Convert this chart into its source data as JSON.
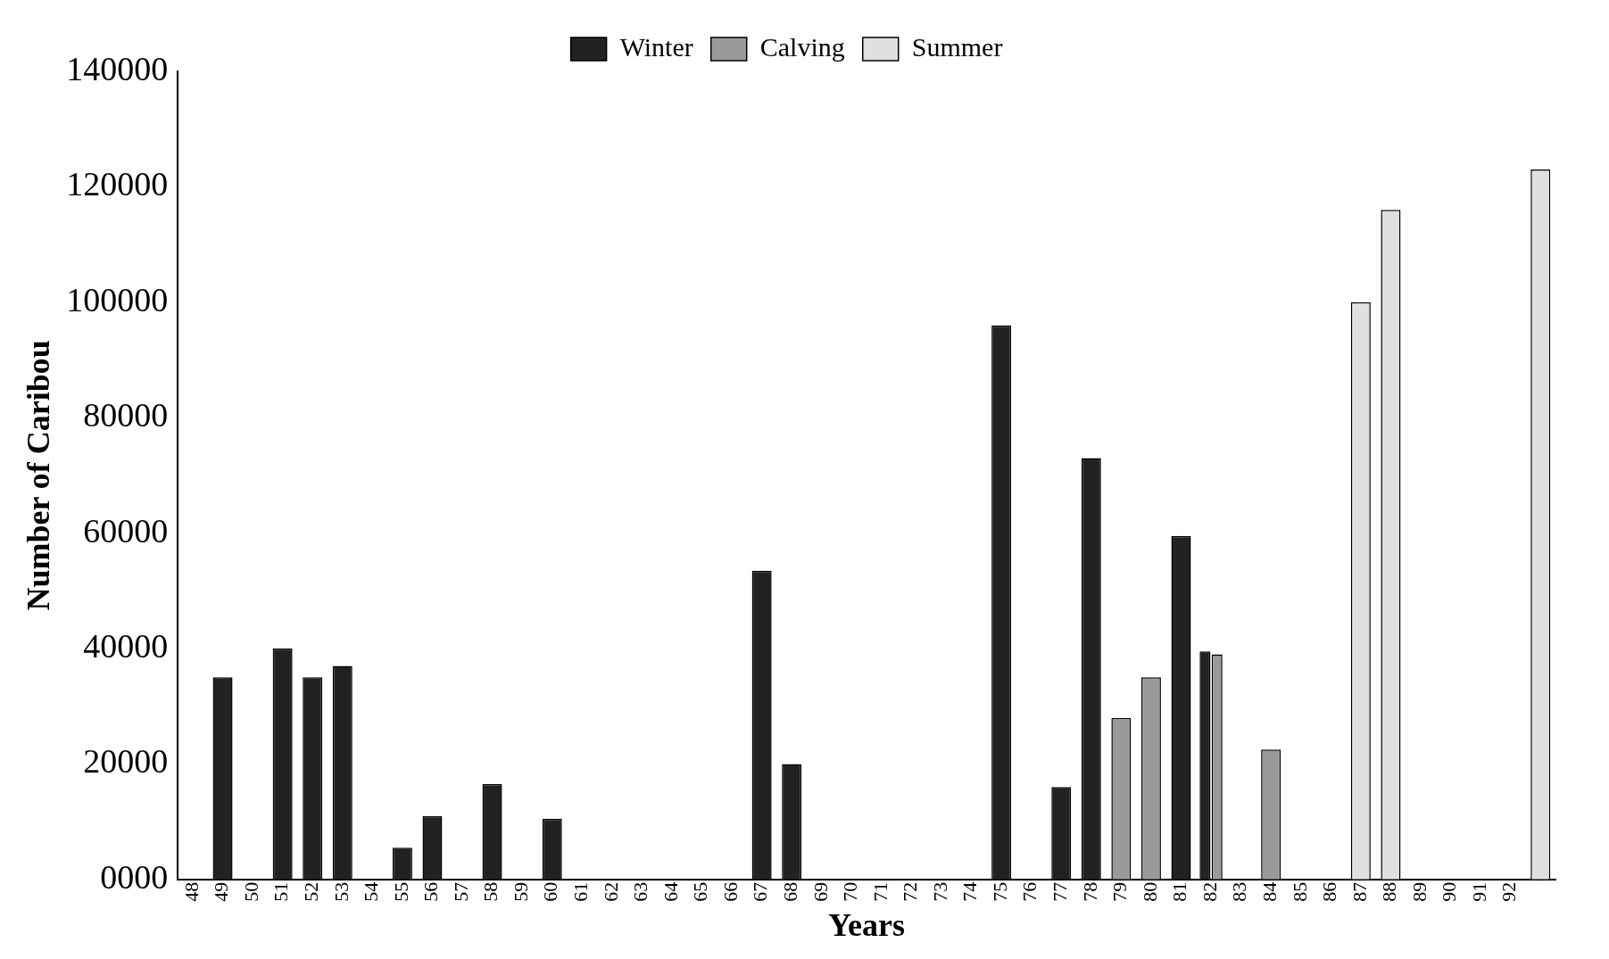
{
  "chart_data": {
    "type": "bar",
    "xlabel": "Years",
    "ylabel": "Number of Caribou",
    "categories": [
      "48",
      "49",
      "50",
      "51",
      "52",
      "53",
      "54",
      "55",
      "56",
      "57",
      "58",
      "59",
      "60",
      "61",
      "62",
      "63",
      "64",
      "65",
      "66",
      "67",
      "68",
      "69",
      "70",
      "71",
      "72",
      "73",
      "74",
      "75",
      "76",
      "77",
      "78",
      "79",
      "80",
      "81",
      "82",
      "83",
      "84",
      "85",
      "86",
      "87",
      "88",
      "89",
      "90",
      "91",
      "92",
      null
    ],
    "series": [
      {
        "name": "Winter",
        "color": "#222222",
        "values": [
          null,
          35000,
          null,
          40000,
          35000,
          37000,
          null,
          5500,
          11000,
          null,
          16500,
          null,
          10500,
          null,
          null,
          null,
          null,
          null,
          null,
          53500,
          20000,
          null,
          null,
          null,
          null,
          null,
          null,
          96000,
          null,
          16000,
          73000,
          null,
          null,
          59500,
          39500,
          null,
          null,
          null,
          null,
          null,
          null,
          null,
          null,
          null,
          null,
          null
        ]
      },
      {
        "name": "Calving",
        "color": "#9a9a9a",
        "values": [
          null,
          null,
          null,
          null,
          null,
          null,
          null,
          null,
          null,
          null,
          null,
          null,
          null,
          null,
          null,
          null,
          null,
          null,
          null,
          null,
          null,
          null,
          null,
          null,
          null,
          null,
          null,
          null,
          null,
          null,
          null,
          28000,
          35000,
          null,
          39000,
          null,
          22500,
          null,
          null,
          null,
          null,
          null,
          null,
          null,
          null,
          null
        ]
      },
      {
        "name": "Summer",
        "color": "#e0e0e0",
        "values": [
          null,
          null,
          null,
          null,
          null,
          null,
          null,
          null,
          null,
          null,
          null,
          null,
          null,
          null,
          null,
          null,
          null,
          null,
          null,
          null,
          null,
          null,
          null,
          null,
          null,
          null,
          null,
          null,
          null,
          null,
          null,
          null,
          null,
          null,
          null,
          null,
          null,
          null,
          null,
          100000,
          116000,
          null,
          null,
          null,
          null,
          123000
        ]
      }
    ],
    "ylim": [
      0,
      140000
    ],
    "yticks": [
      {
        "value": 0,
        "label": "0000"
      },
      20000,
      40000,
      60000,
      80000,
      100000,
      120000,
      140000
    ],
    "grid": false,
    "legend": "top"
  }
}
